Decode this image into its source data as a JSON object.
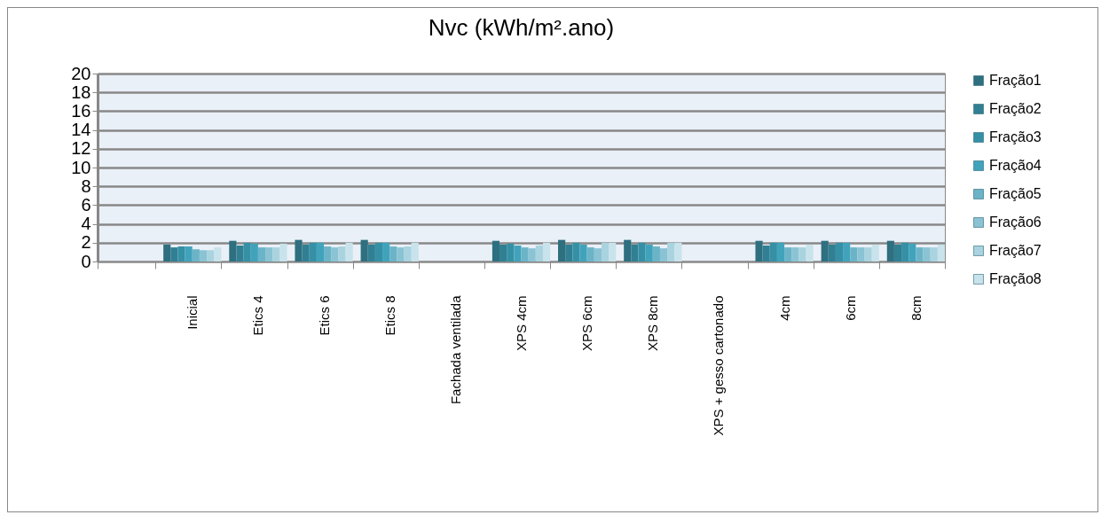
{
  "chart_data": {
    "type": "bar",
    "title": "Nvc (kWh/m².ano)",
    "categories": [
      null,
      "Inicial",
      "Etics 4",
      "Etics 6",
      "Etics 8",
      "Fachada ventilada",
      "XPS 4cm",
      "XPS 6cm",
      "XPS 8cm",
      "XPS + gesso cartonado",
      "4cm",
      "6cm",
      "8cm"
    ],
    "series": [
      {
        "name": "Fração1",
        "color": "#2e6f80",
        "values": [
          0,
          1.8,
          2.2,
          2.3,
          2.3,
          0,
          2.2,
          2.3,
          2.3,
          0,
          2.2,
          2.2,
          2.2
        ]
      },
      {
        "name": "Fração2",
        "color": "#317f92",
        "values": [
          0,
          1.5,
          1.7,
          1.8,
          1.8,
          0,
          1.8,
          1.8,
          1.8,
          0,
          1.7,
          1.8,
          1.8
        ]
      },
      {
        "name": "Fração3",
        "color": "#3590a5",
        "values": [
          0,
          1.6,
          2.0,
          2.0,
          2.0,
          0,
          1.9,
          2.0,
          2.0,
          0,
          2.0,
          2.0,
          2.0
        ]
      },
      {
        "name": "Fração4",
        "color": "#41a3bb",
        "values": [
          0,
          1.6,
          1.9,
          2.0,
          2.0,
          0,
          1.7,
          1.8,
          1.8,
          0,
          2.0,
          2.0,
          1.9
        ]
      },
      {
        "name": "Fração5",
        "color": "#6bb4c8",
        "values": [
          0,
          1.3,
          1.5,
          1.6,
          1.6,
          0,
          1.5,
          1.5,
          1.6,
          0,
          1.5,
          1.5,
          1.5
        ]
      },
      {
        "name": "Fração6",
        "color": "#8ac3d3",
        "values": [
          0,
          1.2,
          1.5,
          1.5,
          1.5,
          0,
          1.4,
          1.4,
          1.4,
          0,
          1.5,
          1.5,
          1.5
        ]
      },
      {
        "name": "Fração7",
        "color": "#a9d3df",
        "values": [
          0,
          1.2,
          1.5,
          1.6,
          1.6,
          0,
          1.7,
          2.0,
          2.0,
          0,
          1.5,
          1.5,
          1.5
        ]
      },
      {
        "name": "Fração8",
        "color": "#c8e3eb",
        "values": [
          0,
          1.5,
          1.9,
          2.0,
          2.0,
          0,
          2.0,
          2.0,
          2.0,
          0,
          1.8,
          1.8,
          1.8
        ]
      }
    ],
    "ylim": [
      0,
      20
    ],
    "yticks": [
      0,
      2,
      4,
      6,
      8,
      10,
      12,
      14,
      16,
      18,
      20
    ],
    "grid": "y",
    "legend": "right"
  }
}
